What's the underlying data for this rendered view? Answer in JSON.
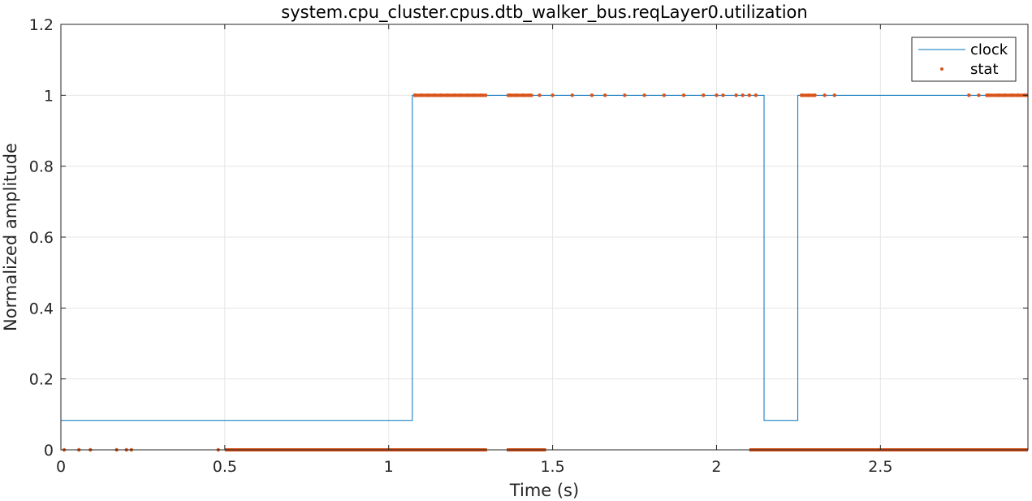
{
  "chart_data": {
    "type": "line",
    "title": "system.cpu_cluster.cpus.dtb_walker_bus.reqLayer0.utilization",
    "xlabel": "Time (s)",
    "ylabel": "Normalized amplitude",
    "xlim": [
      0,
      2.95
    ],
    "ylim": [
      0,
      1.2
    ],
    "xticks": [
      0,
      0.5,
      1,
      1.5,
      2,
      2.5
    ],
    "xtick_labels": [
      "0",
      "0.5",
      "1",
      "1.5",
      "2",
      "2.5"
    ],
    "yticks": [
      0,
      0.2,
      0.4,
      0.6,
      0.8,
      1,
      1.2
    ],
    "ytick_labels": [
      "0",
      "0.2",
      "0.4",
      "0.6",
      "0.8",
      "1",
      "1.2"
    ],
    "grid": true,
    "legend_position": "top-right",
    "colors": {
      "clock": "#0072BD",
      "stat": "#D95319",
      "grid": "#e6e6e6",
      "axes": "#262626"
    },
    "series": [
      {
        "name": "clock",
        "style": "line",
        "x": [
          0,
          1.072,
          1.072,
          2.145,
          2.145,
          2.248,
          2.248,
          2.95,
          2.95
        ],
        "y": [
          0.083,
          0.083,
          1,
          1,
          0.083,
          0.083,
          1,
          1,
          0.083
        ]
      },
      {
        "name": "stat",
        "style": "markers",
        "x": [
          0.01,
          0.055,
          0.09,
          0.17,
          0.2,
          0.215,
          0.48,
          1.08,
          1.1,
          1.12,
          1.14,
          1.16,
          1.18,
          1.2,
          1.22,
          1.24,
          1.26,
          1.28,
          1.37,
          1.39,
          1.41,
          1.43,
          1.46,
          1.5,
          1.56,
          1.62,
          1.66,
          1.72,
          1.78,
          1.84,
          1.9,
          1.96,
          2.0,
          2.02,
          2.06,
          2.08,
          2.1,
          2.12,
          2.26,
          2.28,
          2.3,
          2.33,
          2.36,
          2.77,
          2.8,
          2.83,
          2.86,
          2.88,
          2.9,
          2.92,
          2.94
        ],
        "y": [
          0,
          0,
          0,
          0,
          0,
          0,
          0,
          1,
          1,
          1,
          1,
          1,
          1,
          1,
          1,
          1,
          1,
          1,
          1,
          1,
          1,
          1,
          1,
          1,
          1,
          1,
          1,
          1,
          1,
          1,
          1,
          1,
          1,
          1,
          1,
          1,
          1,
          1,
          1,
          1,
          1,
          1,
          1,
          1,
          1,
          1,
          1,
          1,
          1,
          1,
          1
        ],
        "dense_ranges": [
          {
            "y": 0,
            "x_start": 0.5,
            "x_end": 1.3
          },
          {
            "y": 0,
            "x_start": 1.36,
            "x_end": 1.48
          },
          {
            "y": 0,
            "x_start": 2.1,
            "x_end": 2.95
          },
          {
            "y": 1,
            "x_start": 1.075,
            "x_end": 1.3
          },
          {
            "y": 1,
            "x_start": 1.36,
            "x_end": 1.44
          },
          {
            "y": 1,
            "x_start": 2.255,
            "x_end": 2.3
          },
          {
            "y": 1,
            "x_start": 2.82,
            "x_end": 2.95
          }
        ]
      }
    ]
  }
}
